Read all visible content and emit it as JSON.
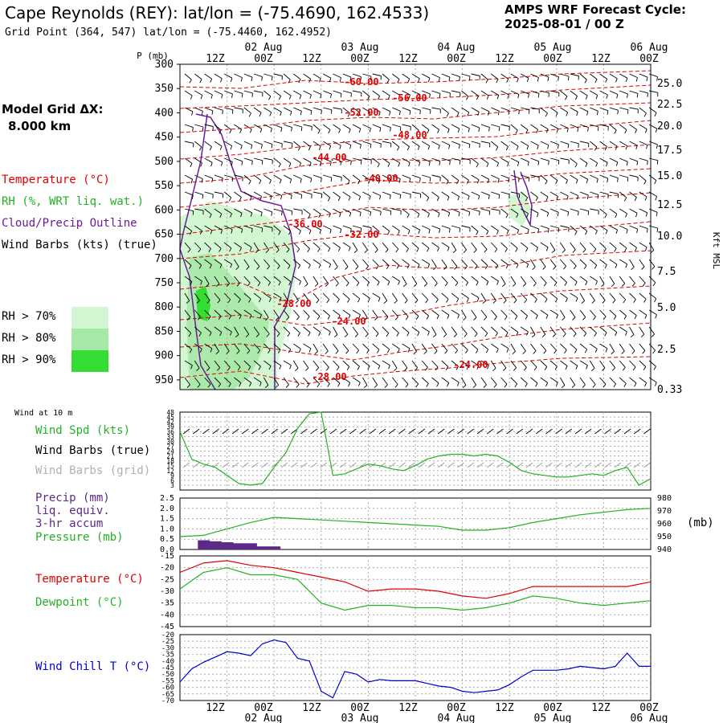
{
  "header": {
    "station_title": "Cape Reynolds (REY):  lat/lon = (-75.4690, 162.4533)",
    "grid_point": "Grid Point (364, 547) lat/lon = (-75.4460, 162.4952)",
    "cycle_label": "AMPS WRF Forecast Cycle:",
    "cycle_value": "2025-08-01 / 00  Z",
    "grid_dx_label": "Model Grid ΔX:",
    "grid_dx_value": "8.000 km"
  },
  "colors": {
    "temperature": "#e00000",
    "rh": "#22b222",
    "cloud": "#6a1b9a",
    "precip_bar": "#5b2a86",
    "wind_chill": "#0000cc",
    "rh70": "#d2f7d2",
    "rh80": "#a6e8a6",
    "rh90": "#33dd33",
    "grid": "#aaaaaa"
  },
  "legend": {
    "temperature": "Temperature (°C)",
    "rh": "RH (%, WRT liq. wat.)",
    "cloud": "Cloud/Precip Outline",
    "wind": "Wind Barbs (kts) (true)",
    "rh_levels": [
      "RH > 70%",
      "RH > 80%",
      "RH > 90%"
    ]
  },
  "time_axis": {
    "top_hours": [
      "12Z",
      "00Z",
      "12Z",
      "00Z",
      "12Z",
      "00Z",
      "12Z",
      "00Z",
      "12Z",
      "00Z"
    ],
    "top_dates": [
      "02 Aug",
      "03 Aug",
      "04 Aug",
      "05 Aug",
      "06 Aug"
    ],
    "bottom_hours": [
      "12Z",
      "00Z",
      "12Z",
      "00Z",
      "12Z",
      "00Z",
      "12Z",
      "00Z",
      "12Z",
      "00Z"
    ],
    "bottom_dates": [
      "02 Aug",
      "03 Aug",
      "04 Aug",
      "05 Aug",
      "06 Aug"
    ]
  },
  "wind10_panel": {
    "title": "Wind at 10 m",
    "labels": [
      "Wind Spd (kts)",
      "Wind Barbs (true)",
      "Wind Barbs (grid)"
    ]
  },
  "precip_panel": {
    "labels": [
      "Precip (mm)",
      "liq. equiv.",
      "3-hr accum",
      "Pressure (mb)"
    ],
    "right_unit": "(mb)"
  },
  "temp_panel": {
    "labels": [
      "Temperature (°C)",
      "Dewpoint (°C)"
    ]
  },
  "windchill_panel": {
    "labels": [
      "Wind Chill T (°C)"
    ]
  },
  "chart_data": [
    {
      "type": "line",
      "panel": "time-pressure cross-section",
      "xlabel": "",
      "ylabel": "P (mb)",
      "y2label": "Kft MSL",
      "ylim": [
        300,
        970
      ],
      "yticks": [
        "300",
        "350",
        "400",
        "450",
        "500",
        "550",
        "600",
        "650",
        "700",
        "750",
        "800",
        "850",
        "900",
        "950"
      ],
      "y2ticks": [
        "25.0",
        "22.5",
        "20.0",
        "17.5",
        "15.0",
        "12.5",
        "10.0",
        "7.5",
        "5.0",
        "2.5",
        "0.33"
      ],
      "x_hours": [
        0,
        120
      ],
      "isotherm_labels": [
        "-60.00",
        "-56.00",
        "-52.00",
        "-48.00",
        "-44.00",
        "-40.00",
        "-36.00",
        "-32.00",
        "-28.00",
        "-24.00",
        "-24.00",
        "-28.00"
      ]
    },
    {
      "type": "line",
      "panel": "wind speed at 10 m",
      "ylabel": "Wind Spd (kts)",
      "ylim": [
        0,
        48
      ],
      "yticks": [
        "48",
        "45",
        "42",
        "39",
        "36",
        "33",
        "30",
        "27",
        "24",
        "21",
        "18",
        "15",
        "12",
        "9",
        "6",
        "3"
      ],
      "x": [
        0,
        3,
        6,
        9,
        12,
        15,
        18,
        21,
        24,
        27,
        30,
        33,
        36,
        39,
        42,
        45,
        48,
        51,
        54,
        57,
        60,
        63,
        66,
        69,
        72,
        75,
        78,
        81,
        84,
        87,
        90,
        93,
        96,
        99,
        102,
        105,
        108,
        111,
        114,
        117,
        120
      ],
      "values": [
        36,
        19,
        16,
        14,
        9,
        4,
        3,
        4,
        14,
        23,
        38,
        47,
        48,
        9,
        10,
        13,
        16,
        15,
        13,
        12,
        15,
        19,
        21,
        22,
        22,
        21,
        22,
        21,
        17,
        12,
        10,
        9,
        8,
        8,
        9,
        10,
        9,
        12,
        14,
        3,
        7
      ]
    },
    {
      "type": "bar+line",
      "panel": "precip and pressure",
      "ylabel": "Precip (mm)",
      "ylim": [
        0,
        2.5
      ],
      "yticks": [
        "2.5",
        "2.0",
        "1.5",
        "1.0",
        "0.5",
        "0.0"
      ],
      "y2label": "(mb)",
      "y2lim": [
        940,
        980
      ],
      "y2ticks": [
        "980",
        "970",
        "960",
        "950",
        "940"
      ],
      "series": [
        {
          "name": "Precip (mm)",
          "x": [
            6,
            9,
            12,
            15,
            18,
            21,
            24
          ],
          "values": [
            0.45,
            0.4,
            0.35,
            0.3,
            0.3,
            0.15,
            0.15
          ]
        },
        {
          "name": "Pressure (mb)",
          "x": [
            0,
            6,
            12,
            18,
            24,
            30,
            36,
            42,
            48,
            54,
            60,
            66,
            72,
            78,
            84,
            90,
            96,
            102,
            108,
            114,
            120
          ],
          "values": [
            950,
            951,
            956,
            961,
            965,
            964,
            963,
            962,
            961,
            960,
            959,
            958,
            955,
            955,
            957,
            961,
            964,
            967,
            969,
            971,
            972
          ]
        }
      ]
    },
    {
      "type": "line",
      "panel": "temperature and dewpoint",
      "ylim": [
        -45,
        -15
      ],
      "yticks": [
        "-15",
        "-20",
        "-25",
        "-30",
        "-35",
        "-40",
        "-45"
      ],
      "series": [
        {
          "name": "Temperature (°C)",
          "x": [
            0,
            6,
            12,
            18,
            24,
            30,
            36,
            42,
            48,
            54,
            60,
            66,
            72,
            78,
            84,
            90,
            96,
            102,
            108,
            114,
            120
          ],
          "values": [
            -22,
            -18,
            -17,
            -19,
            -20,
            -22,
            -24,
            -26,
            -30,
            -29,
            -29,
            -30,
            -32,
            -33,
            -31,
            -28,
            -28,
            -28,
            -28,
            -28,
            -26
          ]
        },
        {
          "name": "Dewpoint (°C)",
          "x": [
            0,
            6,
            12,
            18,
            24,
            30,
            36,
            42,
            48,
            54,
            60,
            66,
            72,
            78,
            84,
            90,
            96,
            102,
            108,
            114,
            120
          ],
          "values": [
            -29,
            -22,
            -20,
            -23,
            -23,
            -25,
            -35,
            -38,
            -36,
            -36,
            -37,
            -37,
            -38,
            -37,
            -35,
            -32,
            -33,
            -35,
            -36,
            -35,
            -34
          ]
        }
      ]
    },
    {
      "type": "line",
      "panel": "wind chill",
      "ylabel": "Wind Chill T (°C)",
      "ylim": [
        -70,
        -20
      ],
      "yticks": [
        "-20",
        "-25",
        "-30",
        "-35",
        "-40",
        "-45",
        "-50",
        "-55",
        "-60",
        "-65",
        "-70"
      ],
      "series": [
        {
          "name": "Wind Chill T (°C)",
          "x": [
            0,
            3,
            6,
            9,
            12,
            15,
            18,
            21,
            24,
            27,
            30,
            33,
            36,
            39,
            42,
            45,
            48,
            51,
            54,
            57,
            60,
            63,
            66,
            69,
            72,
            75,
            78,
            81,
            84,
            87,
            90,
            93,
            96,
            99,
            102,
            105,
            108,
            111,
            114,
            117,
            120
          ],
          "values": [
            -56,
            -46,
            -41,
            -37,
            -33,
            -34,
            -36,
            -27,
            -24,
            -26,
            -38,
            -40,
            -63,
            -68,
            -48,
            -50,
            -56,
            -54,
            -55,
            -55,
            -55,
            -57,
            -59,
            -60,
            -63,
            -64,
            -63,
            -62,
            -58,
            -52,
            -47,
            -47,
            -47,
            -46,
            -44,
            -45,
            -46,
            -44,
            -34,
            -44,
            -44
          ]
        }
      ]
    }
  ]
}
